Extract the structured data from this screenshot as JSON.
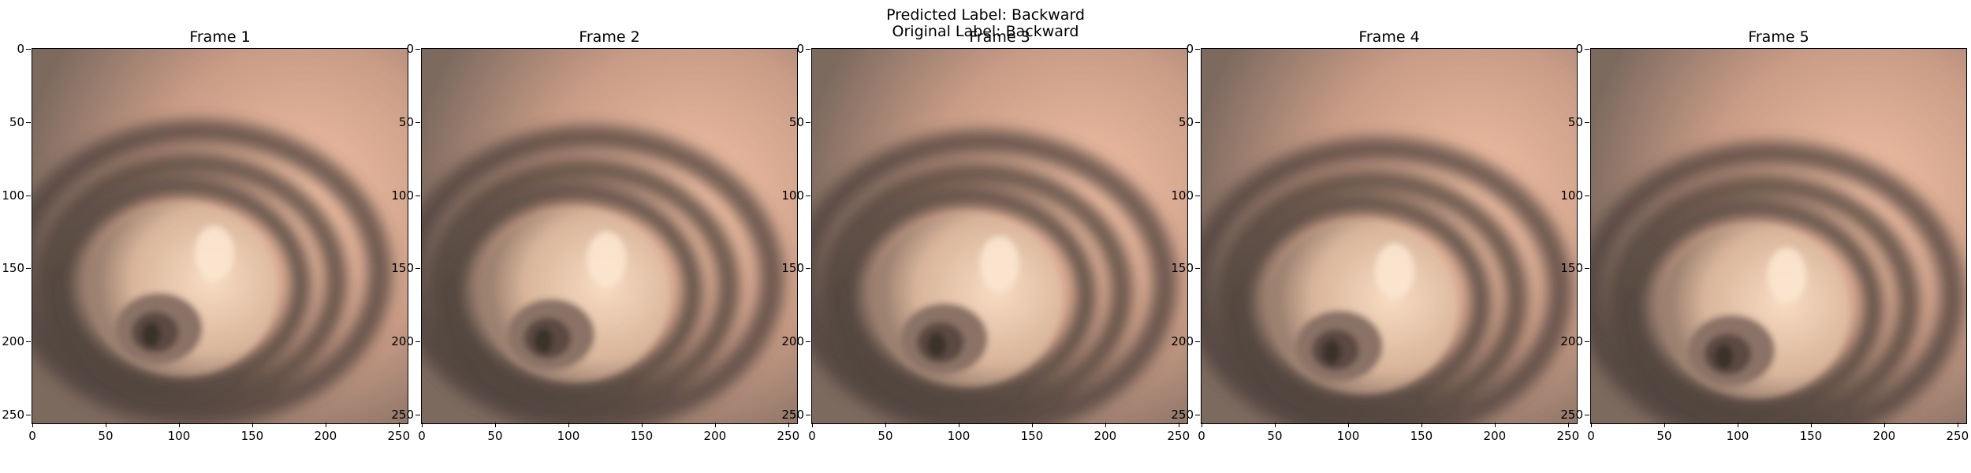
{
  "figure": {
    "predicted": "Predicted Label: Backward",
    "original": "Original Label: Backward"
  },
  "axis": {
    "x_ticks": [
      "0",
      "50",
      "100",
      "150",
      "200",
      "250"
    ],
    "y_ticks": [
      "0",
      "50",
      "100",
      "150",
      "200",
      "250"
    ],
    "x_values": [
      0,
      50,
      100,
      150,
      200,
      250
    ],
    "y_values": [
      0,
      50,
      100,
      150,
      200,
      250
    ],
    "range": [
      0,
      256
    ]
  },
  "frames": [
    {
      "title": "Frame 1",
      "lumen": [
        108,
        148
      ]
    },
    {
      "title": "Frame 2",
      "lumen": [
        110,
        152
      ]
    },
    {
      "title": "Frame 3",
      "lumen": [
        112,
        155
      ]
    },
    {
      "title": "Frame 4",
      "lumen": [
        116,
        160
      ]
    },
    {
      "title": "Frame 5",
      "lumen": [
        118,
        163
      ]
    }
  ],
  "colors": {
    "tissue_light": "#f3c2a6",
    "tissue_mid": "#c99c86",
    "fold_dark": "#4a3f38",
    "lumen_light": "#f8dcc2",
    "background": "#ffffff"
  }
}
